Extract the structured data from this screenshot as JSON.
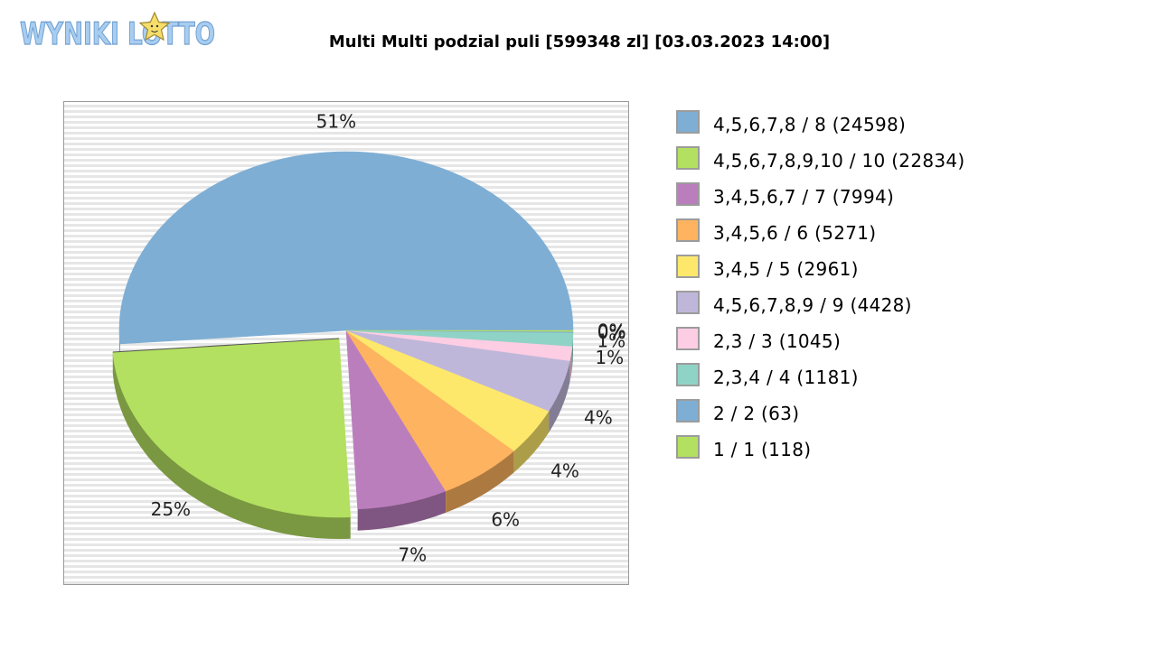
{
  "logo": {
    "text": "WYNIKI LOTTO",
    "icon": "star-icon"
  },
  "chart_data": {
    "type": "pie",
    "title": "Multi Multi podzial puli [599348 zl] [03.03.2023 14:00]",
    "legend_position": "right",
    "slices": [
      {
        "label": "4,5,6,7,8 / 8 (24598)",
        "value": 24598,
        "percent_label": "51%",
        "color": "#7eaed4"
      },
      {
        "label": "4,5,6,7,8,9,10 / 10 (22834)",
        "value": 22834,
        "percent_label": "25%",
        "color": "#b3e060"
      },
      {
        "label": "3,4,5,6,7 / 7 (7994)",
        "value": 7994,
        "percent_label": "7%",
        "color": "#bb7ebd"
      },
      {
        "label": "3,4,5,6 / 6 (5271)",
        "value": 5271,
        "percent_label": "6%",
        "color": "#fdb35f"
      },
      {
        "label": "3,4,5 / 5 (2961)",
        "value": 2961,
        "percent_label": "4%",
        "color": "#fde86b"
      },
      {
        "label": "4,5,6,7,8,9 / 9 (4428)",
        "value": 4428,
        "percent_label": "4%",
        "color": "#bfb7da"
      },
      {
        "label": "2,3 / 3 (1045)",
        "value": 1045,
        "percent_label": "1%",
        "color": "#fdcde3"
      },
      {
        "label": "2,3,4 / 4 (1181)",
        "value": 1181,
        "percent_label": "1%",
        "color": "#8fd3c7"
      },
      {
        "label": "2 / 2 (63)",
        "value": 63,
        "percent_label": "0%",
        "color": "#7eaed4"
      },
      {
        "label": "1 / 1 (118)",
        "value": 118,
        "percent_label": "0%",
        "color": "#b3e060"
      }
    ],
    "slice_percentages": [
      51,
      24.5,
      6.4,
      6.0,
      4.3,
      4.7,
      1.3,
      1.2,
      0.1,
      0.1
    ],
    "exploded_slice_indices": [
      1
    ],
    "start_angle_deg": 0,
    "direction": "counterclockwise"
  }
}
